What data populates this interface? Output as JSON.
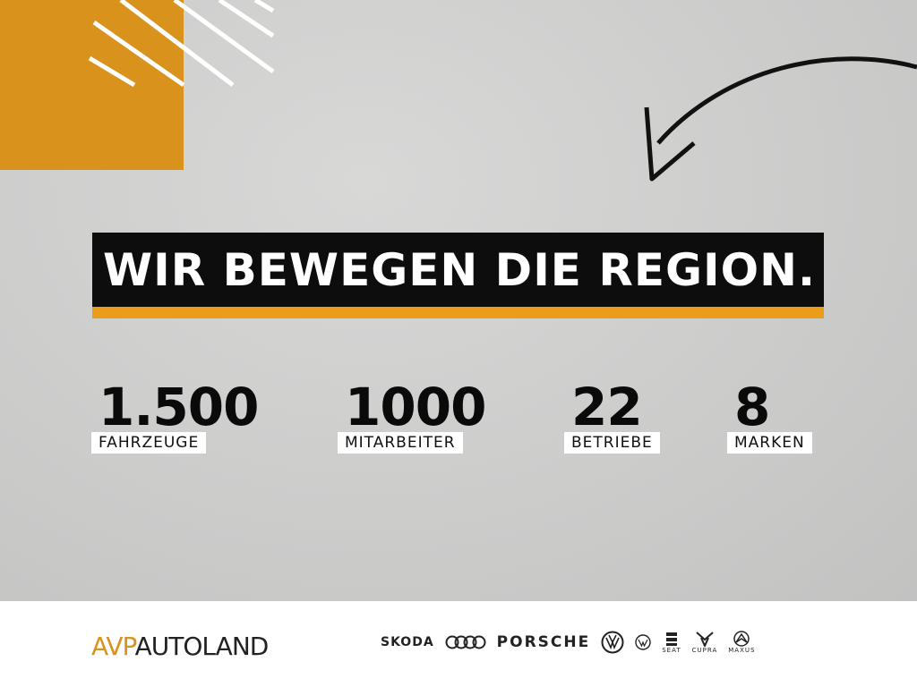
{
  "colors": {
    "accent": "#d9921c",
    "dark": "#0d0d0d",
    "background": "#cdcdcc"
  },
  "headline": "WIR BEWEGEN DIE REGION.",
  "stats": [
    {
      "value": "1.500",
      "label": "FAHRZEUGE"
    },
    {
      "value": "1000",
      "label": "MITARBEITER"
    },
    {
      "value": "22",
      "label": "BETRIEBE"
    },
    {
      "value": "8",
      "label": "MARKEN"
    }
  ],
  "footer": {
    "brand_prefix": "AVP",
    "brand_name": "AUTOLAND",
    "brands": [
      "SKODA",
      "PORSCHE",
      "SEAT",
      "CUPRA",
      "MAXUS"
    ],
    "icons": [
      "audi-rings-icon",
      "vw-icon",
      "vw-nutzfahrzeuge-icon",
      "seat-icon",
      "cupra-icon",
      "maxus-icon"
    ]
  }
}
